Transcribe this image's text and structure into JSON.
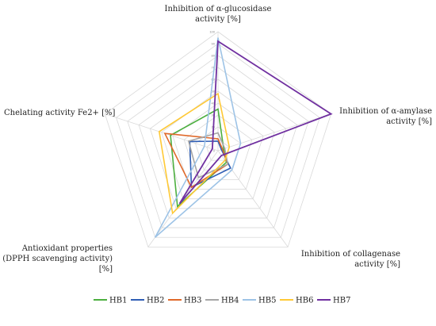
{
  "chart_data": {
    "type": "radar",
    "title": "",
    "axes": [
      {
        "label_lines": [
          "Inhibition of α-glucosidase",
          "activity [%]"
        ]
      },
      {
        "label_lines": [
          "Inhibition of α-amylase",
          "activity [%]"
        ]
      },
      {
        "label_lines": [
          "Inhibition of collagenase",
          "activity [%]"
        ]
      },
      {
        "label_lines": [
          "Antioxidant properties",
          "(DPPH scavenging activity)",
          "[%]"
        ]
      },
      {
        "label_lines": [
          "Chelating activity Fe2+ [%]"
        ]
      }
    ],
    "rlim": [
      0,
      100
    ],
    "ticks": [
      0,
      10,
      20,
      30,
      40,
      50,
      60,
      70,
      80,
      90,
      100
    ],
    "grid": true,
    "legend_position": "bottom",
    "series": [
      {
        "name": "HB1",
        "color": "#4CAF3F",
        "values": [
          35,
          5,
          12,
          58,
          42
        ]
      },
      {
        "name": "HB2",
        "color": "#2F5EB5",
        "values": [
          8,
          3,
          18,
          38,
          25
        ]
      },
      {
        "name": "HB3",
        "color": "#E0692A",
        "values": [
          10,
          4,
          14,
          38,
          47
        ]
      },
      {
        "name": "HB4",
        "color": "#A6A6A6",
        "values": [
          15,
          6,
          14,
          28,
          26
        ]
      },
      {
        "name": "HB5",
        "color": "#9DC3E6",
        "values": [
          95,
          20,
          20,
          90,
          12
        ]
      },
      {
        "name": "HB6",
        "color": "#FFC935",
        "values": [
          48,
          10,
          10,
          65,
          52
        ]
      },
      {
        "name": "HB7",
        "color": "#7030A0",
        "values": [
          92,
          100,
          5,
          55,
          5
        ]
      }
    ]
  }
}
